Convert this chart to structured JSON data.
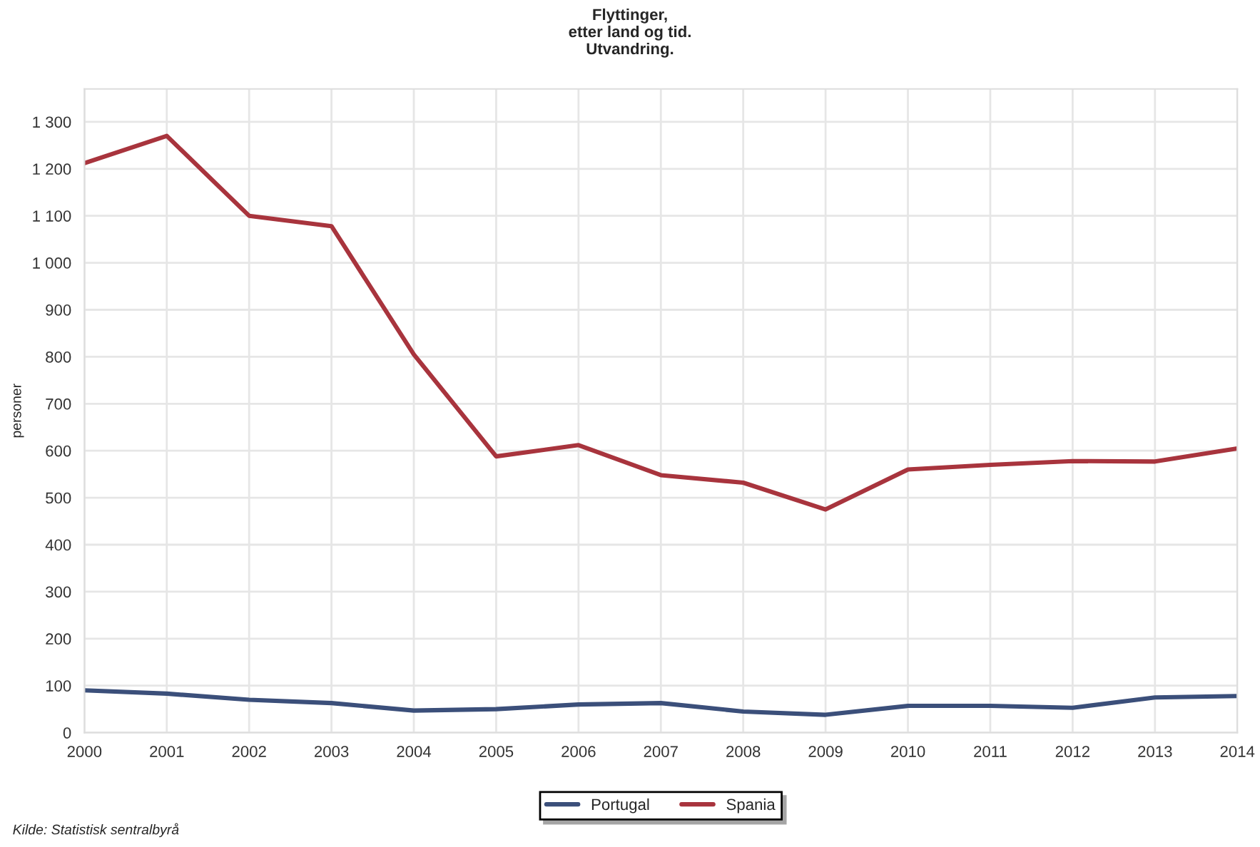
{
  "chart_data": {
    "type": "line",
    "title": "Flyttinger,\netter land og tid.\nUtvandring.",
    "ylabel": "personer",
    "x": [
      2000,
      2001,
      2002,
      2003,
      2004,
      2005,
      2006,
      2007,
      2008,
      2009,
      2010,
      2011,
      2012,
      2013,
      2014
    ],
    "series": [
      {
        "name": "Portugal",
        "color": "#3b4f7a",
        "values": [
          90,
          83,
          70,
          63,
          47,
          50,
          60,
          63,
          45,
          38,
          57,
          57,
          53,
          75,
          78
        ]
      },
      {
        "name": "Spania",
        "color": "#a8343d",
        "values": [
          1212,
          1270,
          1100,
          1078,
          805,
          588,
          612,
          548,
          532,
          475,
          560,
          570,
          578,
          577,
          605
        ]
      }
    ],
    "xlim": [
      2000,
      2014
    ],
    "xticks": [
      2000,
      2001,
      2002,
      2003,
      2004,
      2005,
      2006,
      2007,
      2008,
      2009,
      2010,
      2011,
      2012,
      2013,
      2014
    ],
    "ylim": [
      0,
      1370
    ],
    "yticks": [
      0,
      100,
      200,
      300,
      400,
      500,
      600,
      700,
      800,
      900,
      {
        "value": 1000,
        "label": "1 000"
      },
      {
        "value": 1100,
        "label": "1 100"
      },
      {
        "value": 1200,
        "label": "1 200"
      },
      {
        "value": 1300,
        "label": "1 300"
      }
    ],
    "grid": true,
    "legend": "bottom",
    "marker": "none",
    "line_style": "solid",
    "annotations": [
      "Kilde: Statistisk sentralbyrå"
    ]
  }
}
